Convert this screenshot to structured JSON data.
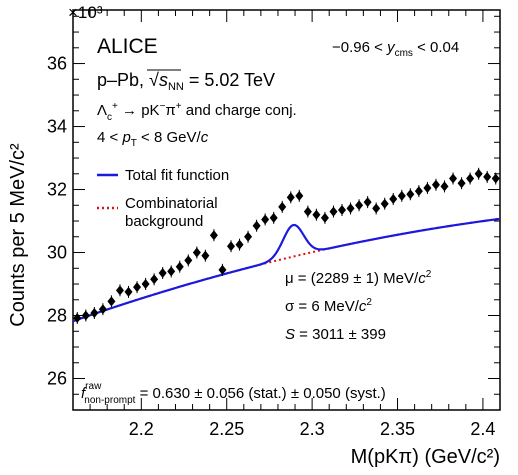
{
  "chart_data": {
    "type": "scatter",
    "experiment": "ALICE",
    "ylabel": "Counts per 5 MeV/c²",
    "y_multiplier": "×10³",
    "xlabel": "M(pKπ) (GeV/c²)",
    "xlim": [
      2.16,
      2.41
    ],
    "ylim": [
      25.0,
      37.7
    ],
    "x_ticks": [
      2.2,
      2.25,
      2.3,
      2.35,
      2.4
    ],
    "y_ticks": [
      26,
      28,
      30,
      32,
      34,
      36
    ],
    "x_tick_labels": [
      "2.2",
      "2.25",
      "2.3",
      "2.35",
      "2.4"
    ],
    "y_tick_labels": [
      "26",
      "28",
      "30",
      "32",
      "34",
      "36"
    ],
    "annotations": {
      "rapidity": "−0.96 < y_cms < 0.04",
      "system": "p–Pb, √s_NN = 5.02 TeV",
      "decay": "Λ_c⁺ → pK⁻π⁺ and charge conj.",
      "pt_range": "4 < p_T < 8 GeV/c",
      "mu": "μ = (2289 ± 1) MeV/c²",
      "sigma": "σ = 6 MeV/c²",
      "signal": "S = 3011 ± 399",
      "fraction": "f_non-prompt^raw = 0.630 ± 0.056 (stat.) ± 0.050 (syst.)"
    },
    "legend": [
      {
        "label": "Total fit function",
        "color": "#1a1adf",
        "style": "solid"
      },
      {
        "label": "Combinatorial background",
        "color": "#e01010",
        "style": "dotted"
      }
    ],
    "legend_placement": "upper-left",
    "series": [
      {
        "name": "Data",
        "marker": "diamond",
        "color": "#000000",
        "x": [
          2.1625,
          2.1675,
          2.1725,
          2.1775,
          2.1825,
          2.1875,
          2.1925,
          2.1975,
          2.2025,
          2.2075,
          2.2125,
          2.2175,
          2.2225,
          2.2275,
          2.2325,
          2.2375,
          2.2425,
          2.2475,
          2.2525,
          2.2575,
          2.2625,
          2.2675,
          2.2725,
          2.2775,
          2.2825,
          2.2875,
          2.2925,
          2.2975,
          2.3025,
          2.3075,
          2.3125,
          2.3175,
          2.3225,
          2.3275,
          2.3325,
          2.3375,
          2.3425,
          2.3475,
          2.3525,
          2.3575,
          2.3625,
          2.3675,
          2.3725,
          2.3775,
          2.3825,
          2.3875,
          2.3925,
          2.3975,
          2.4025,
          2.4075
        ],
        "y": [
          27.92,
          28.0,
          28.08,
          28.2,
          28.45,
          28.8,
          28.75,
          28.9,
          29.0,
          29.15,
          29.35,
          29.4,
          29.55,
          29.75,
          30.0,
          29.9,
          30.55,
          29.45,
          30.2,
          30.25,
          30.5,
          30.85,
          31.05,
          31.1,
          31.45,
          31.75,
          31.8,
          31.3,
          31.2,
          31.1,
          31.3,
          31.35,
          31.4,
          31.5,
          31.6,
          31.4,
          31.55,
          31.7,
          31.8,
          31.85,
          31.95,
          32.05,
          32.15,
          32.1,
          32.35,
          32.2,
          32.35,
          32.5,
          32.4,
          32.35
        ]
      }
    ]
  }
}
